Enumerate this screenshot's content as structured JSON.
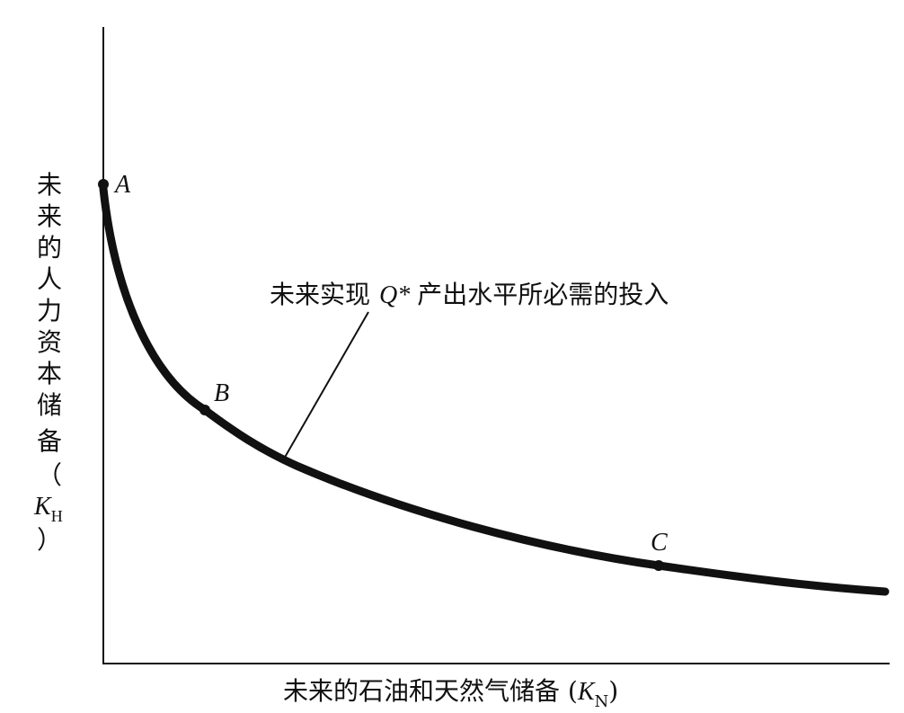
{
  "y_axis_label": {
    "lines": [
      "未",
      "来",
      "的",
      "人",
      "力",
      "资",
      "本",
      "储",
      "备",
      "（"
    ],
    "symbol": "K",
    "subscript": "H",
    "close": "）"
  },
  "x_axis_label": {
    "text": "未来的石油和天然气储备 (",
    "symbol": "K",
    "subscript": "N",
    "close": ")"
  },
  "curve_label": {
    "before": "未来实现",
    "symbol": "Q*",
    "after": "产出水平所必需的投入"
  },
  "points": [
    "A",
    "B",
    "C"
  ]
}
